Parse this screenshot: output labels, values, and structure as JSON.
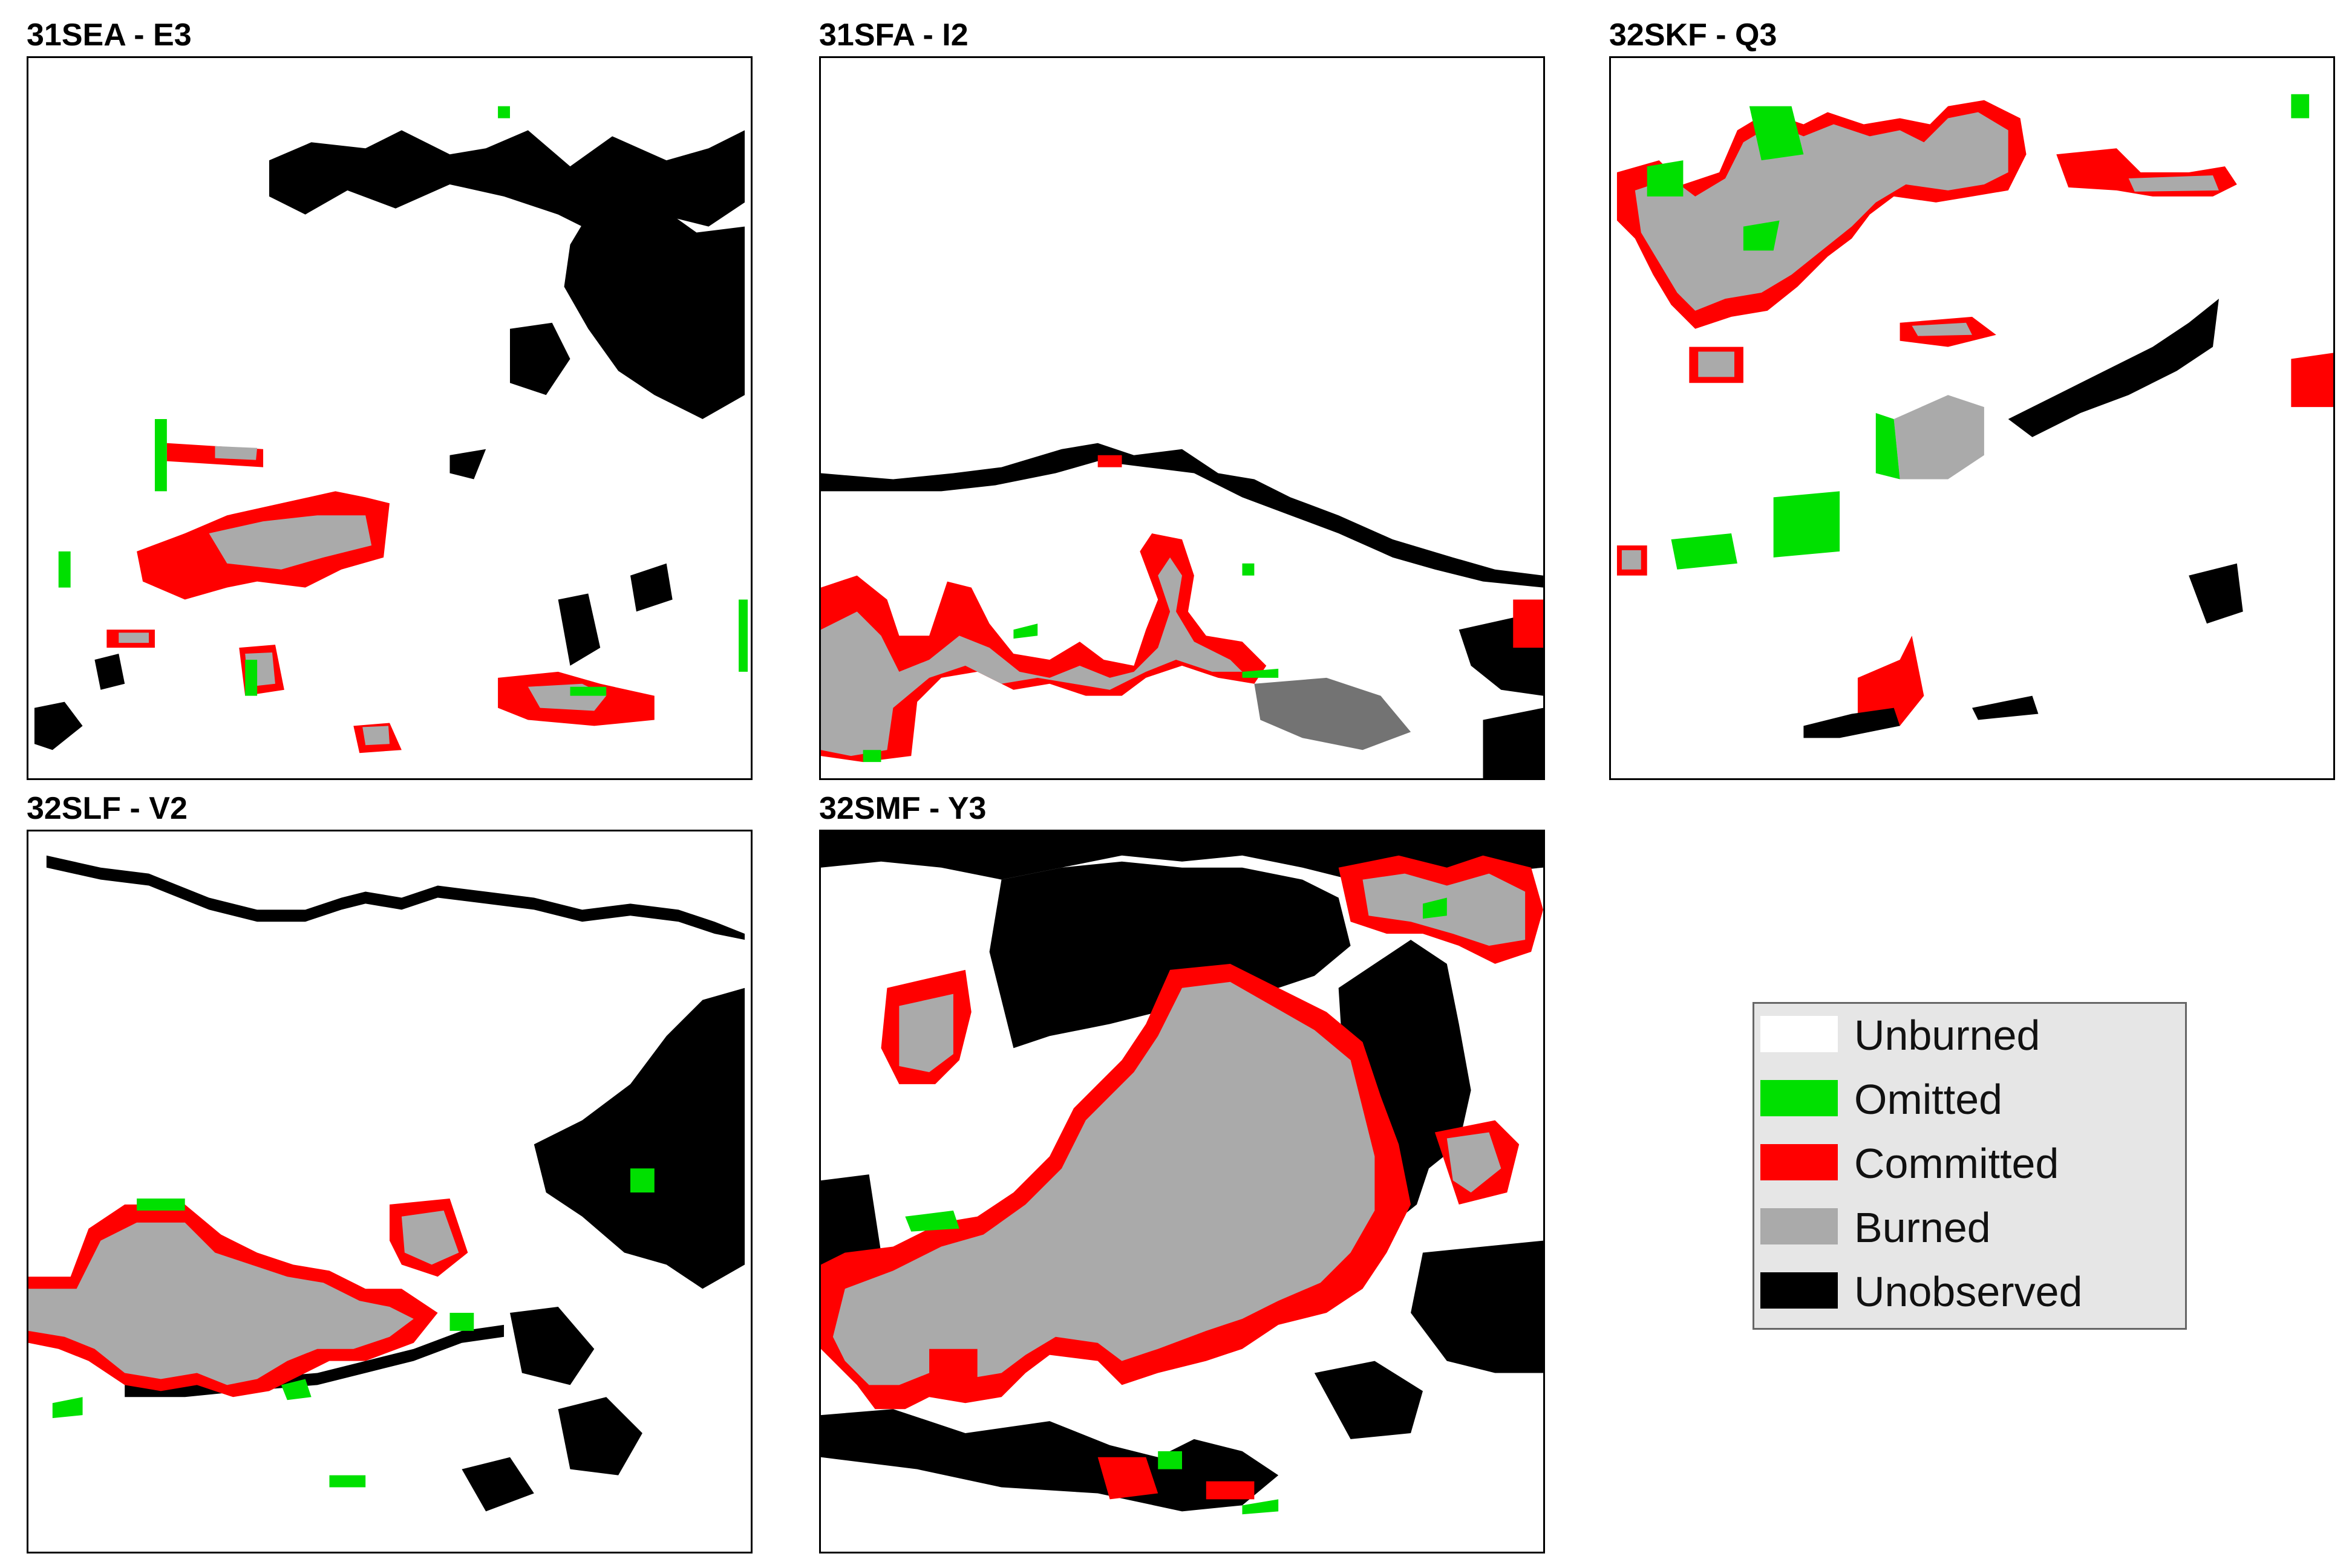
{
  "panels": [
    {
      "id": "p1",
      "title": "31SEA - E3"
    },
    {
      "id": "p2",
      "title": "31SFA - I2"
    },
    {
      "id": "p3",
      "title": "32SKF - Q3"
    },
    {
      "id": "p4",
      "title": "32SLF - V2"
    },
    {
      "id": "p5",
      "title": "32SMF - Y3"
    }
  ],
  "legend": {
    "items": [
      {
        "label": "Unburned",
        "color": "#ffffff"
      },
      {
        "label": "Omitted",
        "color": "#00e000"
      },
      {
        "label": "Committed",
        "color": "#ff0000"
      },
      {
        "label": "Burned",
        "color": "#aaaaaa"
      },
      {
        "label": "Unobserved",
        "color": "#000000"
      }
    ]
  }
}
